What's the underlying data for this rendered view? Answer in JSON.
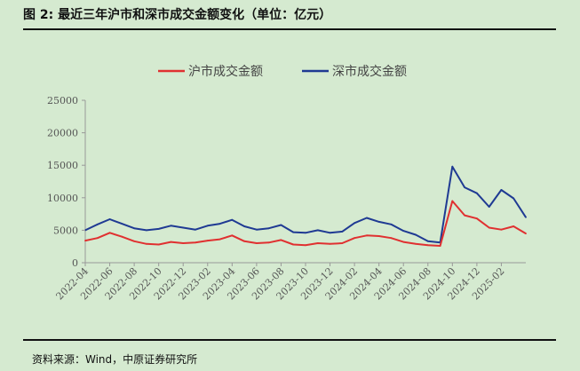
{
  "header": {
    "title": "图 2:  最近三年沪市和深市成交金额变化（单位：亿元）"
  },
  "footer": {
    "source": "资料来源：Wind，中原证券研究所"
  },
  "colors": {
    "sh": "#e03030",
    "sz": "#1f3a93",
    "axis": "#999999",
    "background": "#d5ead0"
  },
  "chart_data": {
    "type": "line",
    "title": "图 2:  最近三年沪市和深市成交金额变化（单位：亿元）",
    "xlabel": "",
    "ylabel": "",
    "ylim": [
      0,
      25000
    ],
    "yticks": [
      0,
      5000,
      10000,
      15000,
      20000,
      25000
    ],
    "xlim": [
      "2022-04",
      "2025-04"
    ],
    "xticks": [
      "2022-04",
      "2022-06",
      "2022-08",
      "2022-10",
      "2022-12",
      "2023-02",
      "2023-04",
      "2023-06",
      "2023-08",
      "2023-10",
      "2023-12",
      "2024-02",
      "2024-04",
      "2024-06",
      "2024-08",
      "2024-10",
      "2024-12",
      "2025-02"
    ],
    "legend": "top-center",
    "series": [
      {
        "name": "沪市成交金额",
        "x": [
          "2022-04",
          "2022-05",
          "2022-06",
          "2022-07",
          "2022-08",
          "2022-09",
          "2022-10",
          "2022-11",
          "2022-12",
          "2023-01",
          "2023-02",
          "2023-03",
          "2023-04",
          "2023-05",
          "2023-06",
          "2023-07",
          "2023-08",
          "2023-09",
          "2023-10",
          "2023-11",
          "2023-12",
          "2024-01",
          "2024-02",
          "2024-03",
          "2024-04",
          "2024-05",
          "2024-06",
          "2024-07",
          "2024-08",
          "2024-09",
          "2024-10",
          "2024-11",
          "2024-12",
          "2025-01",
          "2025-02",
          "2025-03",
          "2025-04"
        ],
        "values": [
          3400,
          3800,
          4600,
          4000,
          3300,
          2900,
          2800,
          3200,
          3000,
          3100,
          3400,
          3600,
          4200,
          3300,
          3000,
          3100,
          3500,
          2800,
          2700,
          3000,
          2900,
          3000,
          3800,
          4200,
          4100,
          3800,
          3200,
          2900,
          2700,
          2600,
          9500,
          7300,
          6800,
          5400,
          5100,
          5600,
          4500
        ]
      },
      {
        "name": "深市成交金额",
        "x": [
          "2022-04",
          "2022-05",
          "2022-06",
          "2022-07",
          "2022-08",
          "2022-09",
          "2022-10",
          "2022-11",
          "2022-12",
          "2023-01",
          "2023-02",
          "2023-03",
          "2023-04",
          "2023-05",
          "2023-06",
          "2023-07",
          "2023-08",
          "2023-09",
          "2023-10",
          "2023-11",
          "2023-12",
          "2024-01",
          "2024-02",
          "2024-03",
          "2024-04",
          "2024-05",
          "2024-06",
          "2024-07",
          "2024-08",
          "2024-09",
          "2024-10",
          "2024-11",
          "2024-12",
          "2025-01",
          "2025-02",
          "2025-03",
          "2025-04"
        ],
        "values": [
          5000,
          5900,
          6700,
          6000,
          5300,
          5000,
          5200,
          5700,
          5400,
          5100,
          5700,
          6000,
          6600,
          5600,
          5100,
          5300,
          5800,
          4700,
          4600,
          5000,
          4600,
          4800,
          6100,
          6900,
          6300,
          5900,
          4900,
          4300,
          3300,
          3100,
          14800,
          11600,
          10700,
          8600,
          11200,
          9900,
          7000
        ]
      }
    ]
  }
}
